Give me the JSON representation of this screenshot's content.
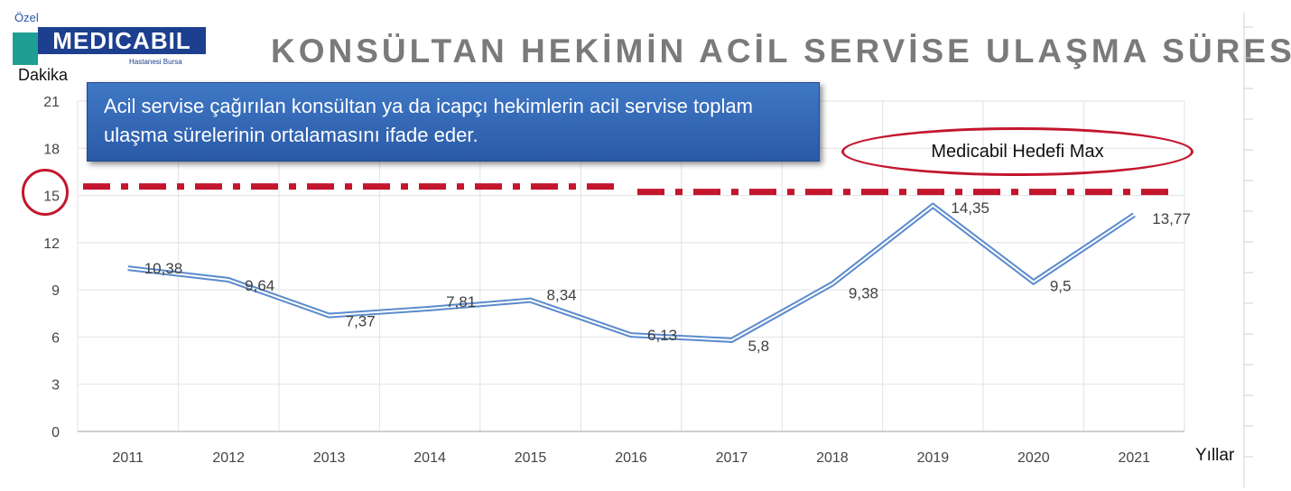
{
  "logo": {
    "small": "Özel",
    "main": "MEDICABIL",
    "sub": "Hastanesi Bursa"
  },
  "title": "KONSÜLTAN HEKİMİN ACİL SERVİSE ULAŞMA SÜRESİ",
  "note": "Acil servise  çağırılan konsültan ya da icapçı hekimlerin acil servise toplam ulaşma sürelerinin ortalamasını ifade eder.",
  "target_label": "Medicabil Hedefi Max",
  "colors": {
    "series": "#5b8bcc",
    "target": "#c3162d",
    "title": "#7a7a7a",
    "note_bg": "#2f66b3"
  },
  "chart_data": {
    "type": "line",
    "title": "KONSÜLTAN HEKİMİN ACİL SERVİSE ULAŞMA SÜRESİ",
    "xlabel": "Yıllar",
    "ylabel": "Dakika",
    "categories": [
      "2011",
      "2012",
      "2013",
      "2014",
      "2015",
      "2016",
      "2017",
      "2018",
      "2019",
      "2020",
      "2021"
    ],
    "series": [
      {
        "values": [
          10.38,
          9.64,
          7.37,
          7.81,
          8.34,
          6.13,
          5.8,
          9.38,
          14.35,
          9.5,
          13.77
        ],
        "labels": [
          "10,38",
          "9,64",
          "7,37",
          "7,81",
          "8,34",
          "6,13",
          "5,8",
          "9,38",
          "14,35",
          "9,5",
          "13,77"
        ]
      }
    ],
    "target_line": 15,
    "ylim": [
      0,
      21
    ],
    "yticks": [
      0,
      3,
      6,
      9,
      12,
      15,
      18,
      21
    ],
    "grid": true,
    "legend": "none"
  }
}
